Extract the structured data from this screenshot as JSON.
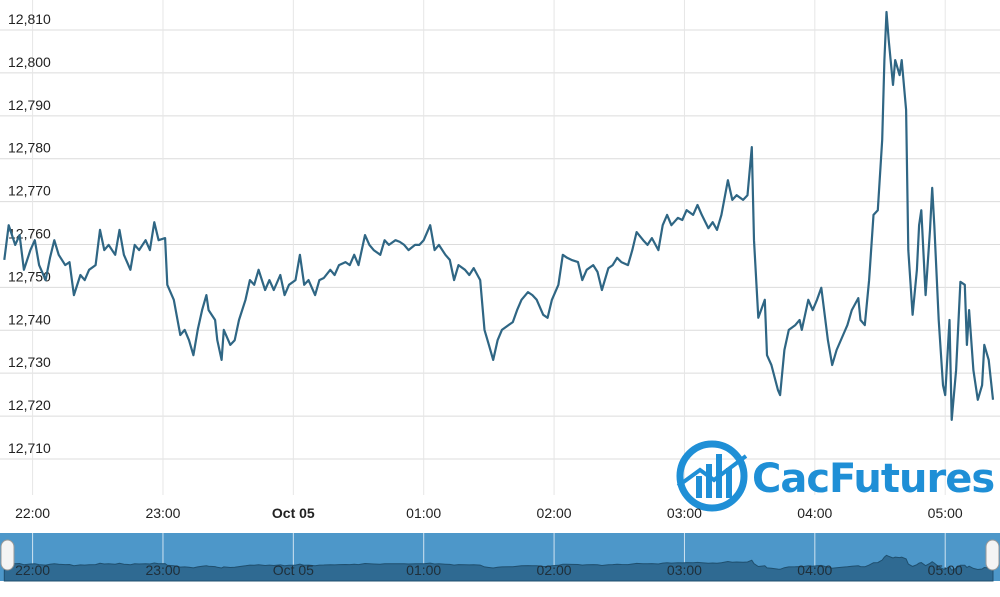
{
  "chart_data": {
    "type": "line",
    "watermark": "CacFutures",
    "xlim": [
      "21:45",
      "05:22"
    ],
    "xticks": [
      "22:00",
      "23:00",
      {
        "value": "00:00",
        "label": "Oct 05"
      },
      "01:00",
      "02:00",
      "03:00",
      "04:00",
      "05:00"
    ],
    "ylim": [
      12701.6,
      12817
    ],
    "yticks": [
      {
        "value": 12710,
        "label": "12,710"
      },
      {
        "value": 12720,
        "label": "12,720"
      },
      {
        "value": 12730,
        "label": "12,730"
      },
      {
        "value": 12740,
        "label": "12,740"
      },
      {
        "value": 12750,
        "label": "12,750"
      },
      {
        "value": 12760,
        "label": "12,760"
      },
      {
        "value": 12770,
        "label": "12,770"
      },
      {
        "value": 12780,
        "label": "12,780"
      },
      {
        "value": 12790,
        "label": "12,790"
      },
      {
        "value": 12800,
        "label": "12,800"
      },
      {
        "value": 12810,
        "label": "12,810"
      }
    ],
    "grid": true,
    "navigator": true,
    "series": [
      {
        "color": "#2f6684",
        "x": [
          "21:47",
          "21:49",
          "21:52",
          "21:54",
          "21:56",
          "21:59",
          "22:01",
          "22:03",
          "22:06",
          "22:08",
          "22:10",
          "22:12",
          "22:15",
          "22:17",
          "22:19",
          "22:22",
          "22:24",
          "22:26",
          "22:29",
          "22:31",
          "22:33",
          "22:35",
          "22:38",
          "22:40",
          "22:42",
          "22:45",
          "22:47",
          "22:49",
          "22:52",
          "22:54",
          "22:56",
          "22:58",
          "23:01",
          "23:02",
          "23:05",
          "23:08",
          "23:10",
          "23:12",
          "23:14",
          "23:16",
          "23:18",
          "23:20",
          "23:21",
          "23:24",
          "23:25",
          "23:27",
          "23:28",
          "23:31",
          "23:33",
          "23:35",
          "23:38",
          "23:40",
          "23:42",
          "23:44",
          "23:47",
          "23:49",
          "23:51",
          "23:54",
          "23:56",
          "23:58",
          "00:01",
          "00:03",
          "00:05",
          "00:07",
          "00:10",
          "00:12",
          "00:14",
          "00:17",
          "00:19",
          "00:21",
          "00:24",
          "00:26",
          "00:28",
          "00:30",
          "00:33",
          "00:35",
          "00:37",
          "00:40",
          "00:42",
          "00:44",
          "00:47",
          "00:49",
          "00:51",
          "00:53",
          "00:56",
          "00:58",
          "01:00",
          "01:03",
          "01:05",
          "01:07",
          "01:10",
          "01:12",
          "01:14",
          "01:16",
          "01:19",
          "01:21",
          "01:23",
          "01:26",
          "01:28",
          "01:30",
          "01:32",
          "01:34",
          "01:36",
          "01:39",
          "01:41",
          "01:43",
          "01:45",
          "01:48",
          "01:50",
          "01:52",
          "01:55",
          "01:57",
          "01:59",
          "02:02",
          "02:04",
          "02:06",
          "02:08",
          "02:11",
          "02:13",
          "02:15",
          "02:18",
          "02:20",
          "02:22",
          "02:25",
          "02:27",
          "02:29",
          "02:31",
          "02:34",
          "02:36",
          "02:38",
          "02:41",
          "02:43",
          "02:45",
          "02:48",
          "02:50",
          "02:52",
          "02:54",
          "02:57",
          "02:59",
          "03:01",
          "03:04",
          "03:06",
          "03:08",
          "03:11",
          "03:13",
          "03:15",
          "03:17",
          "03:20",
          "03:22",
          "03:24",
          "03:27",
          "03:29",
          "03:31",
          "03:32",
          "03:34",
          "03:37",
          "03:38",
          "03:40",
          "03:43",
          "03:44",
          "03:46",
          "03:48",
          "03:51",
          "03:53",
          "03:54",
          "03:57",
          "03:59",
          "04:01",
          "04:03",
          "04:06",
          "04:08",
          "04:10",
          "04:13",
          "04:15",
          "04:17",
          "04:20",
          "04:21",
          "04:23",
          "04:25",
          "04:27",
          "04:29",
          "04:31",
          "04:32",
          "04:33",
          "04:34",
          "04:36",
          "04:37",
          "04:39",
          "04:40",
          "04:42",
          "04:43",
          "04:45",
          "04:47",
          "04:48",
          "04:49",
          "04:51",
          "04:53",
          "04:54",
          "04:55",
          "04:57",
          "04:59",
          "05:00",
          "05:02",
          "05:03",
          "05:05",
          "05:07",
          "05:09",
          "05:10",
          "05:11",
          "05:13",
          "05:15",
          "05:17",
          "05:18",
          "05:20",
          "05:22"
        ],
        "values": [
          12756.4,
          12764.5,
          12759.9,
          12762.2,
          12754.1,
          12758.7,
          12761,
          12755.2,
          12751.7,
          12756.9,
          12761,
          12757.6,
          12755.2,
          12755.9,
          12748.2,
          12752.9,
          12751.7,
          12754.1,
          12755.2,
          12763.4,
          12758.7,
          12759.9,
          12757.6,
          12763.4,
          12757.6,
          12754.1,
          12759.9,
          12758.7,
          12761,
          12758.7,
          12765.2,
          12761,
          12761.5,
          12750.6,
          12747.1,
          12738.9,
          12740.1,
          12737.7,
          12734.2,
          12740.1,
          12744.7,
          12748.2,
          12744.7,
          12742.4,
          12737.7,
          12733.1,
          12740.1,
          12736.6,
          12737.7,
          12742.4,
          12747.1,
          12751.7,
          12750.6,
          12754.1,
          12749.4,
          12751.7,
          12749.4,
          12752.9,
          12748.2,
          12750.6,
          12751.7,
          12757.6,
          12750.6,
          12751.7,
          12748.2,
          12751.7,
          12752.2,
          12754.1,
          12752.9,
          12755.2,
          12755.9,
          12755.2,
          12757.6,
          12755.2,
          12762.2,
          12759.9,
          12758.7,
          12757.6,
          12761,
          12759.9,
          12761,
          12760.6,
          12759.9,
          12758.7,
          12759.9,
          12759.9,
          12761,
          12764.5,
          12758.7,
          12759.9,
          12757.6,
          12756.4,
          12751.7,
          12755.2,
          12754.1,
          12752.9,
          12754.5,
          12751.7,
          12740.1,
          12736.6,
          12733.1,
          12737.7,
          12740.1,
          12741.2,
          12741.9,
          12744.7,
          12747.1,
          12748.9,
          12748.2,
          12747.1,
          12743.6,
          12742.9,
          12747.1,
          12750.6,
          12757.6,
          12756.9,
          12756.4,
          12755.9,
          12751.7,
          12754.1,
          12755.2,
          12753.6,
          12749.4,
          12754.5,
          12755.2,
          12756.9,
          12755.9,
          12755.2,
          12758.7,
          12762.9,
          12761,
          12759.9,
          12761.5,
          12758.7,
          12764.5,
          12766.9,
          12764.5,
          12766.2,
          12765.7,
          12768,
          12766.9,
          12769.2,
          12766.9,
          12763.8,
          12765.2,
          12763.4,
          12766.9,
          12775,
          12770.4,
          12771.5,
          12770.4,
          12771.5,
          12782.7,
          12761,
          12742.9,
          12747.1,
          12734.2,
          12731.9,
          12726.1,
          12724.9,
          12735.4,
          12740.1,
          12741.2,
          12742.4,
          12740.1,
          12747.1,
          12744.7,
          12747.1,
          12749.9,
          12737.7,
          12731.9,
          12735.4,
          12738.9,
          12741.2,
          12744.7,
          12747.5,
          12742.4,
          12741.2,
          12751.7,
          12766.9,
          12768,
          12784.4,
          12803,
          12814.2,
          12807.7,
          12797.2,
          12803,
          12799.5,
          12803,
          12791.4,
          12758.7,
          12743.6,
          12754.1,
          12764.5,
          12768,
          12748.2,
          12763.4,
          12773.2,
          12764.5,
          12742.4,
          12727.2,
          12724.9,
          12742.4,
          12719.1,
          12730.7,
          12751.3,
          12750.6,
          12736.6,
          12744.7,
          12730.7,
          12723.8,
          12727.2,
          12736.6,
          12733.1,
          12723.8
        ]
      }
    ]
  }
}
